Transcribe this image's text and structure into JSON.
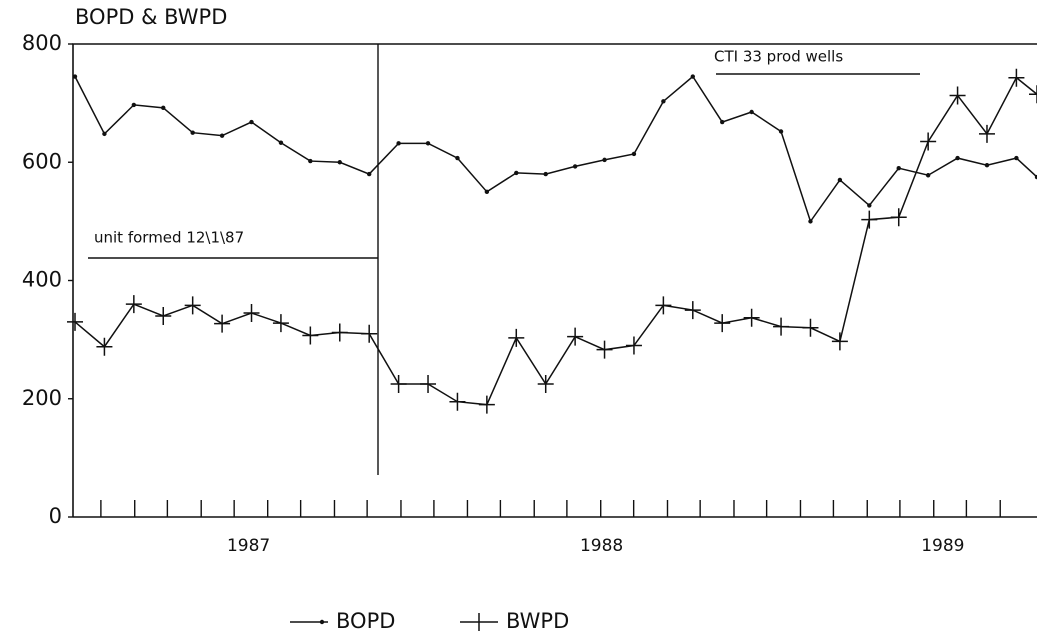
{
  "chart_data": {
    "type": "line",
    "title": "BOPD & BWPD",
    "x": [
      0,
      1,
      2,
      3,
      4,
      5,
      6,
      7,
      8,
      9,
      10,
      11,
      12,
      13,
      14,
      15,
      16,
      17,
      18,
      19,
      20,
      21,
      22,
      23,
      24,
      25,
      26,
      27,
      28,
      29,
      30,
      31,
      32,
      32.7
    ],
    "series": [
      {
        "name": "BOPD",
        "color": "#111111",
        "marker": "dot",
        "values": [
          745,
          648,
          697,
          692,
          650,
          645,
          668,
          633,
          602,
          600,
          580,
          632,
          632,
          607,
          550,
          582,
          580,
          593,
          604,
          614,
          703,
          745,
          668,
          685,
          652,
          500,
          570,
          527,
          590,
          578,
          607,
          595,
          607,
          575
        ]
      },
      {
        "name": "BWPD",
        "color": "#111111",
        "marker": "plus",
        "values": [
          330,
          288,
          360,
          340,
          358,
          327,
          345,
          328,
          307,
          312,
          310,
          225,
          225,
          195,
          190,
          303,
          225,
          305,
          283,
          290,
          358,
          350,
          328,
          337,
          322,
          320,
          297,
          503,
          507,
          635,
          713,
          648,
          743,
          715
        ]
      }
    ],
    "xlim": [
      0,
      32.7
    ],
    "xticks": [
      {
        "value": 5.9,
        "label": "1987"
      },
      {
        "value": 17.9,
        "label": "1988"
      },
      {
        "value": 29.5,
        "label": "1989"
      }
    ],
    "xminorticks": [
      0.88,
      2.03,
      3.14,
      4.29,
      5.41,
      6.55,
      7.67,
      8.82,
      9.93,
      11.08,
      12.2,
      13.34,
      14.46,
      15.61,
      16.72,
      17.87,
      18.99,
      20.14,
      21.25,
      22.4,
      23.51,
      24.66,
      25.78,
      26.93,
      28.04,
      29.19,
      30.3,
      31.45
    ],
    "ylim": [
      0,
      800
    ],
    "yticks": [
      0,
      200,
      400,
      600,
      800
    ],
    "annotations": [
      {
        "text": "unit formed 12\\1\\87"
      },
      {
        "text": "CTI 33 prod wells"
      }
    ],
    "legend": "bottom"
  }
}
